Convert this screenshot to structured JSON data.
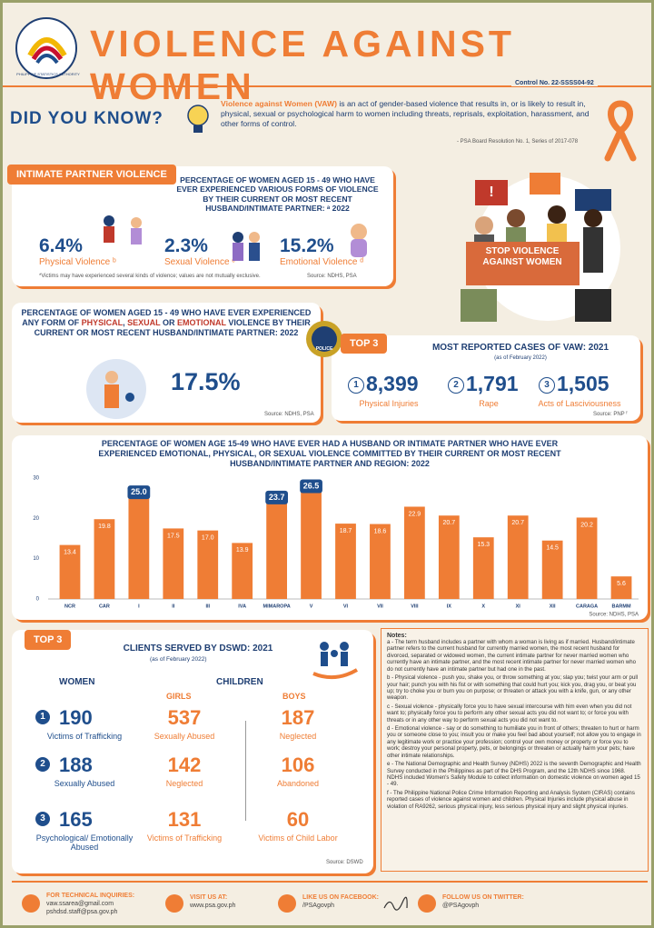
{
  "header": {
    "title": "VIOLENCE AGAINST WOMEN",
    "logo_text": "PHILIPPINE STATISTICS AUTHORITY",
    "control_no": "Control No. 22-SSSS04-92"
  },
  "did_you_know": {
    "heading": "DID YOU KNOW?",
    "term": "Violence against Women (VAW)",
    "text": "is an act of gender-based violence that results in, or is likely to result in, physical, sexual or psychological harm to women including threats, reprisals, exploitation, harassment, and other forms of control.",
    "source": "- PSA Board Resolution No. 1, Series of 2017-078"
  },
  "ipv": {
    "tag": "INTIMATE PARTNER VIOLENCE",
    "title": "PERCENTAGE OF WOMEN AGED 15 - 49 WHO HAVE EVER EXPERIENCED VARIOUS FORMS OF VIOLENCE BY THEIR CURRENT OR MOST RECENT HUSBAND/INTIMATE PARTNER: ᵃ 2022",
    "stats": [
      {
        "value": "6.4%",
        "label": "Physical Violence ᵇ"
      },
      {
        "value": "2.3%",
        "label": "Sexual Violence ᶜ"
      },
      {
        "value": "15.2%",
        "label": "Emotional Violence ᵈ"
      }
    ],
    "footnote": "*Victims may have experienced several kinds of violence; values are not mutually exclusive.",
    "source": "Source: NDHS, PSA"
  },
  "any_form": {
    "title": [
      "PERCENTAGE OF WOMEN AGED 15 - 49 WHO HAVE EVER EXPERIENCED ANY FORM OF",
      "PHYSICAL",
      ",",
      "SEXUAL",
      "OR",
      "EMOTIONAL",
      "VIOLENCE BY THEIR CURRENT OR MOST RECENT HUSBAND/INTIMATE PARTNER: 2022"
    ],
    "value": "17.5%",
    "source": "Source: NDHS, PSA"
  },
  "illustration": {
    "sign": "STOP VIOLENCE AGAINST WOMEN"
  },
  "cases": {
    "tag": "TOP 3",
    "badge": "POLICE",
    "title": "MOST REPORTED CASES OF VAW: 2021",
    "subtitle": "(as of February 2022)",
    "items": [
      {
        "rank": 1,
        "value": "8,399",
        "label": "Physical Injuries"
      },
      {
        "rank": 2,
        "value": "1,791",
        "label": "Rape"
      },
      {
        "rank": 3,
        "value": "1,505",
        "label": "Acts of Lasciviousness"
      }
    ],
    "source": "Source: PNP ᶠ"
  },
  "chart": {
    "type": "bar",
    "title": "PERCENTAGE OF WOMEN AGE 15-49 WHO HAVE EVER HAD A HUSBAND OR INTIMATE PARTNER WHO HAVE EVER EXPERIENCED EMOTIONAL, PHYSICAL, OR SEXUAL VIOLENCE COMMITTED BY THEIR CURRENT OR MOST RECENT HUSBAND/INTIMATE PARTNER AND REGION: 2022",
    "categories": [
      "NCR",
      "CAR",
      "I",
      "II",
      "III",
      "IVA",
      "MIMAROPA",
      "V",
      "VI",
      "VII",
      "VIII",
      "IX",
      "X",
      "XI",
      "XII",
      "CARAGA",
      "BARMM"
    ],
    "values": [
      13.4,
      19.8,
      25.0,
      17.5,
      17.0,
      13.9,
      23.7,
      26.5,
      18.7,
      18.6,
      22.9,
      20.7,
      15.3,
      20.7,
      14.5,
      20.2,
      5.6
    ],
    "value_labels": [
      "13.4",
      "19.8",
      "25.0",
      "17.5",
      "17.0",
      "13.9",
      "23.7",
      "26.5",
      "18.7",
      "18.6",
      "22.9",
      "20.7",
      "15.3",
      "20.7",
      "14.5",
      "20.2",
      "5.6"
    ],
    "color": "#ef7d35",
    "highlight_color": "#1f4e8c",
    "ylim": [
      0,
      30
    ],
    "yticks": [
      0,
      10,
      20,
      30
    ],
    "source": "Source: NDHS, PSA"
  },
  "clients": {
    "tag": "TOP 3",
    "title": "CLIENTS SERVED BY DSWD: 2021",
    "subtitle": "(as of February 2022)",
    "women_heading": "WOMEN",
    "children_heading": "CHILDREN",
    "girls_heading": "GIRLS",
    "boys_heading": "BOYS",
    "women": [
      {
        "rank": 1,
        "value": 190,
        "label": "Victims of Trafficking"
      },
      {
        "rank": 2,
        "value": 188,
        "label": "Sexually Abused"
      },
      {
        "rank": 3,
        "value": 165,
        "label": "Psychological/ Emotionally Abused"
      }
    ],
    "girls": [
      {
        "value": 537,
        "label": "Sexually Abused"
      },
      {
        "value": 142,
        "label": "Neglected"
      },
      {
        "value": 131,
        "label": "Victims of Trafficking"
      }
    ],
    "boys": [
      {
        "value": 187,
        "label": "Neglected"
      },
      {
        "value": 106,
        "label": "Abandoned"
      },
      {
        "value": 60,
        "label": "Victims of Child Labor"
      }
    ],
    "source": "Source: DSWD"
  },
  "notes": {
    "heading": "Notes:",
    "items": [
      "a - The term husband includes a partner with whom a woman is living as if married. Husband/intimate partner refers to the current husband for currently married women, the most recent husband for divorced, separated or widowed women, the current intimate partner for never married women who currently have an intimate partner, and the most recent intimate partner for never married women who do not currently have an intimate partner but had one in the past.",
      "b - Physical violence - push you, shake you, or throw something at you; slap you; twist your arm or pull your hair; punch you with his fist or with something that could hurt you; kick you, drag you, or beat you up; try to choke you or burn you on purpose; or threaten or attack you with a knife, gun, or any other weapon.",
      "c - Sexual violence - physically force you to have sexual intercourse with him even when you did not want to; physically force you to perform any other sexual acts you did not want to; or force you with threats or in any other way to perform sexual acts you did not want to.",
      "d - Emotional violence - say or do something to humiliate you in front of others; threaten to hurt or harm you or someone close to you; insult you or make you feel bad about yourself; not allow you to engage in any legitimate work or practice your profession; control your own money or property or force you to work; destroy your personal property, pets, or belongings or threaten or actually harm your pets; have other intimate relationships.",
      "e - The National Demographic and Health Survey (NDHS) 2022 is the seventh Demographic and Health Survey conducted in the Philippines as part of the DHS Program, and the 12th NDHS since 1968. NDHS included Women's Safety Module to collect information on domestic violence on women aged 15 - 49.",
      "f - The Philippine National Police Crime Information Reporting and Analysis System (CIRAS) contains reported cases of violence against women and children. Physical Injuries include physical abuse in violation of RA9262, serious physical injury, less serious physical injury and slight physical injuries."
    ]
  },
  "footer": {
    "inquiries_heading": "FOR TECHNICAL INQUIRIES:",
    "emails": [
      "vaw.ssarea@gmail.com",
      "pshdsd.staff@psa.gov.ph"
    ],
    "visit_heading": "VISIT US AT:",
    "website": "www.psa.gov.ph",
    "facebook_heading": "LIKE US ON FACEBOOK:",
    "facebook": "/PSAgovph",
    "twitter_heading": "FOLLOW US ON TWITTER:",
    "twitter": "@PSAgovph"
  }
}
